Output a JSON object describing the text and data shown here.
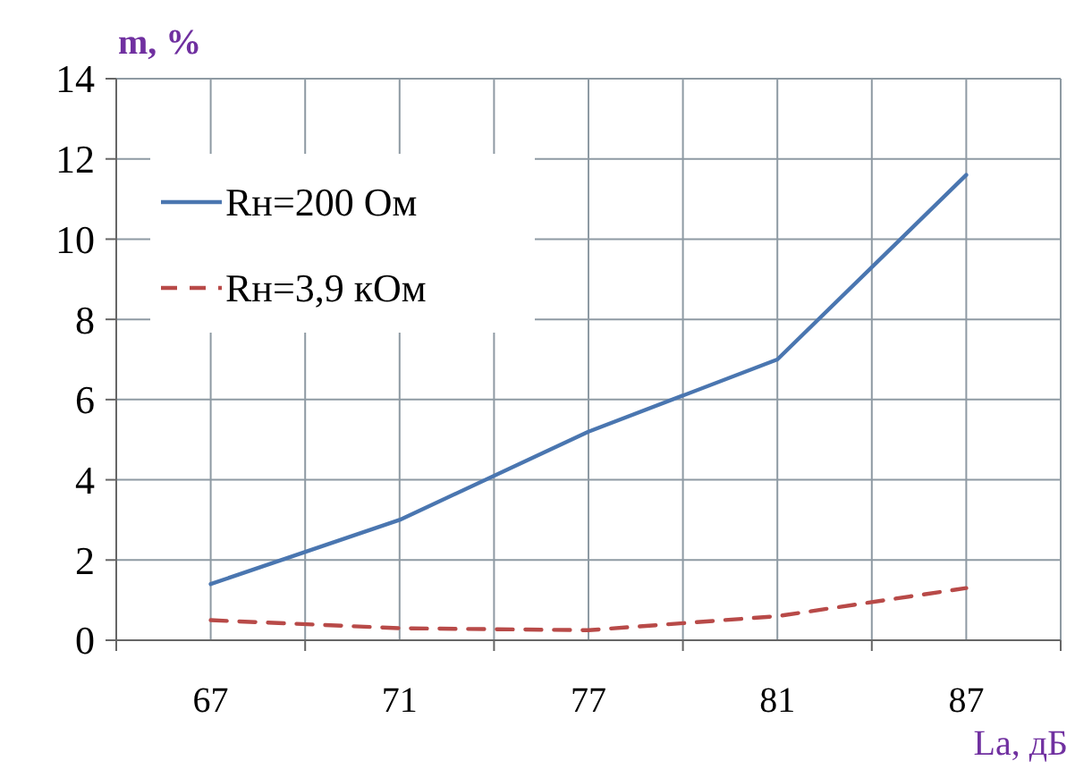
{
  "chart_data": {
    "type": "line",
    "xlabel": "La, дБ",
    "ylabel": "m, %",
    "categories": [
      "67",
      "71",
      "77",
      "81",
      "87"
    ],
    "series": [
      {
        "name": "Rн=200 Ом",
        "color": "#4a76b0",
        "values": [
          1.4,
          3.0,
          5.2,
          7.0,
          11.6
        ],
        "line_style": "solid"
      },
      {
        "name": "Rн=3,9 кОм",
        "color": "#b84a48",
        "values": [
          0.5,
          0.3,
          0.25,
          0.6,
          1.3
        ],
        "line_style": "dashed"
      }
    ],
    "ylim": [
      0,
      14
    ],
    "yticks": [
      0,
      2,
      4,
      6,
      8,
      10,
      12,
      14
    ],
    "grid": true,
    "legend": "top left",
    "marker": "none"
  }
}
